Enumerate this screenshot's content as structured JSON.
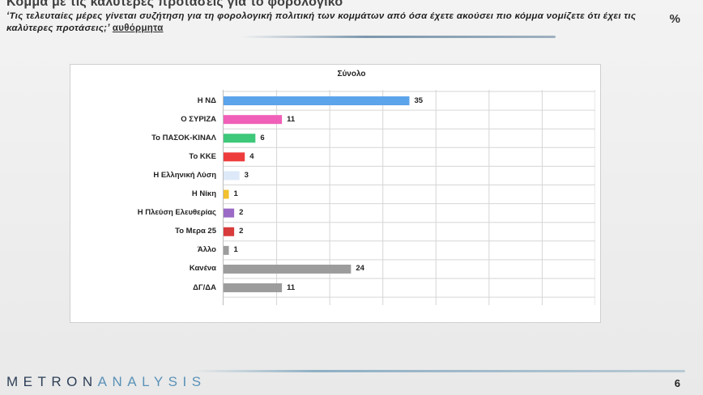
{
  "header": {
    "title": "Κόμμα με τις καλύτερες προτάσεις για το φορολογικό",
    "question": "‘Τις τελευταίες μέρες γίνεται συζήτηση για τη φορολογική πολιτική των κομμάτων από όσα έχετε ακούσει πιο κόμμα νομίζετε ότι έχει τις καλύτερες προτάσεις;’",
    "question_mode": "αυθόρμητα",
    "unit": "%"
  },
  "footer": {
    "brand_part1": "METRON",
    "brand_part2": "ANALYSIS",
    "page_number": "6"
  },
  "chart_data": {
    "type": "bar",
    "orientation": "horizontal",
    "title": "Σύνολο",
    "categories": [
      "Η ΝΔ",
      "Ο ΣΥΡΙΖΑ",
      "Το ΠΑΣΟΚ-ΚΙΝΑΛ",
      "Το ΚΚΕ",
      "Η Ελληνική Λύση",
      "Η Νίκη",
      "Η Πλεύση Ελευθερίας",
      "Το Μερα 25",
      "Άλλο",
      "Κανένα",
      "ΔΓ/ΔΑ"
    ],
    "values": [
      35,
      11,
      6,
      4,
      3,
      1,
      2,
      2,
      1,
      24,
      11
    ],
    "colors": [
      "#5ba3ea",
      "#f060b8",
      "#3ec87a",
      "#ee3c3c",
      "#dde9f8",
      "#f2c12e",
      "#9a6ac6",
      "#d83b3b",
      "#9c9c9c",
      "#9c9c9c",
      "#9c9c9c"
    ],
    "xlim": [
      0,
      70
    ],
    "grid": true,
    "legend": "none",
    "data_labels": true
  }
}
